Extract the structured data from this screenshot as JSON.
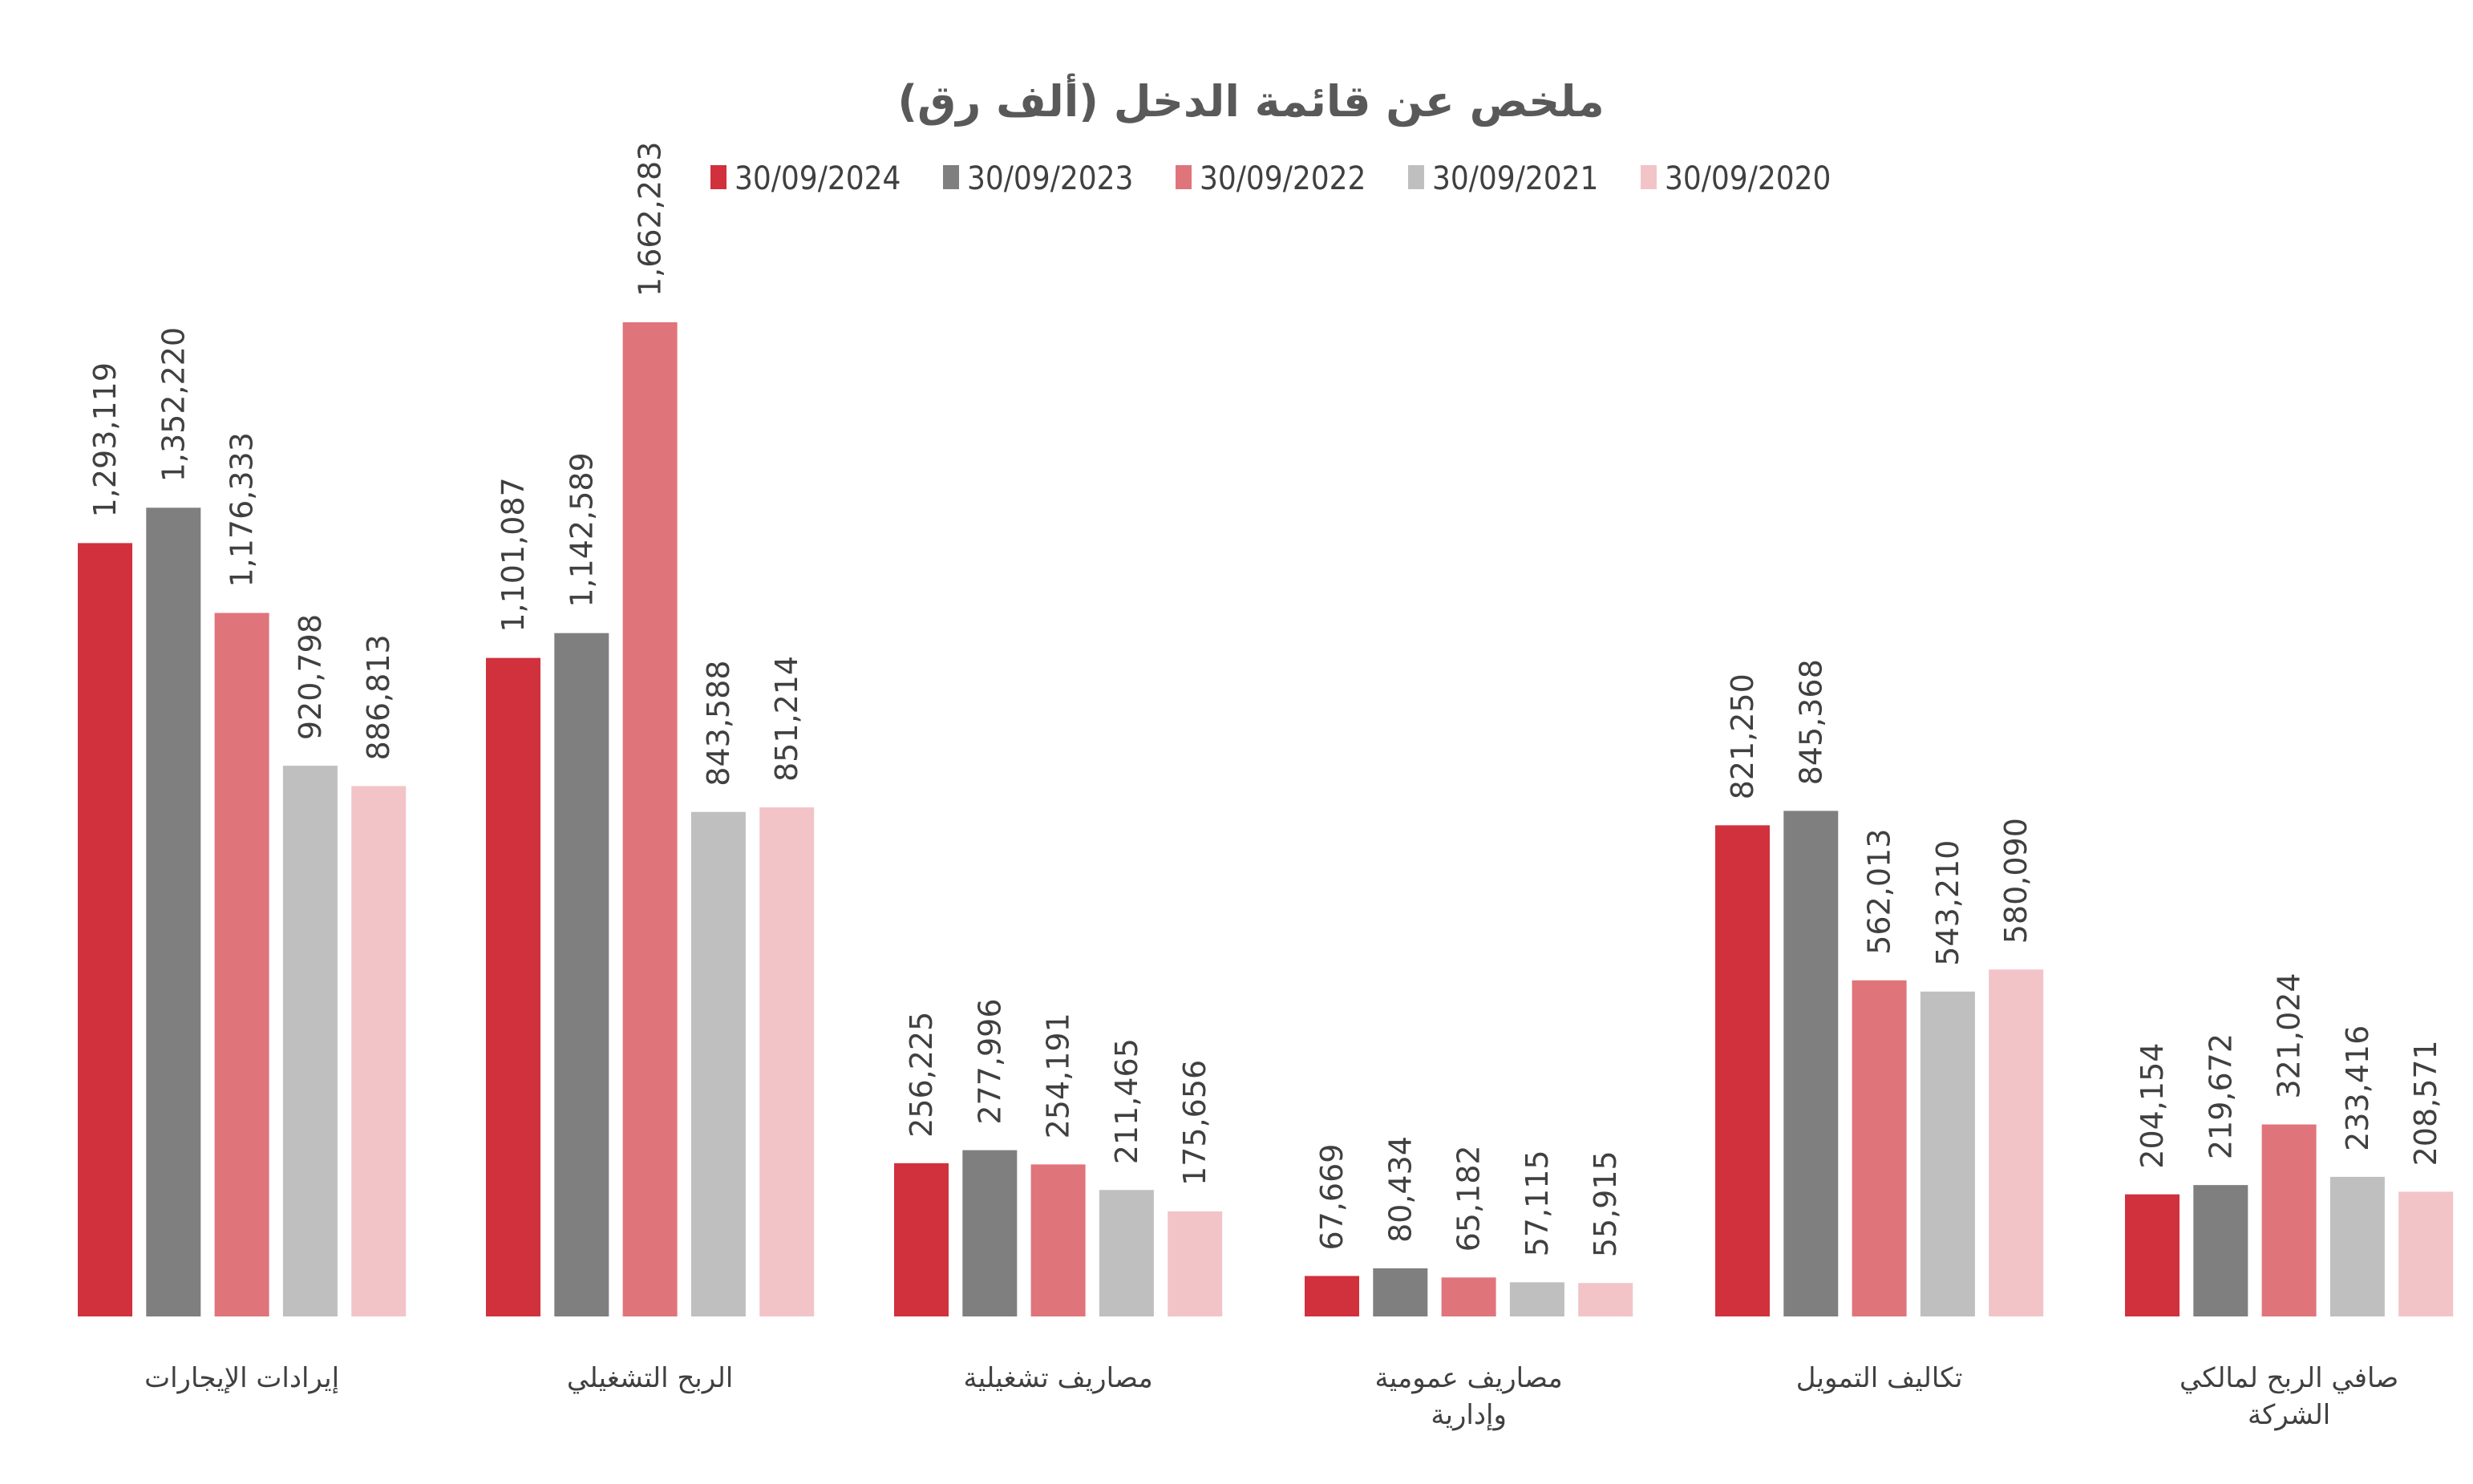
{
  "chart_data": {
    "type": "bar",
    "title": "ملخص عن قائمة الدخل (ألف رق)",
    "legend_position": "top",
    "grid": false,
    "ylim": [
      0,
      1800000
    ],
    "categories": [
      [
        "إيرادات الإيجارات"
      ],
      [
        "الربح التشغيلي"
      ],
      [
        "مصاريف تشغيلية"
      ],
      [
        "مصاريف عمومية",
        "وإدارية"
      ],
      [
        "تكاليف التمويل"
      ],
      [
        "صافي الربح لمالكي",
        "الشركة"
      ]
    ],
    "series": [
      {
        "name": "30/09/2024",
        "color": "#D1313D",
        "values": [
          1293119,
          1101087,
          256225,
          67669,
          821250,
          204154
        ],
        "labels": [
          "1,293,119",
          "1,101,087",
          "256,225",
          "67,669",
          "821,250",
          "204,154"
        ]
      },
      {
        "name": "30/09/2023",
        "color": "#7F7F7F",
        "values": [
          1352220,
          1142589,
          277996,
          80434,
          845368,
          219672
        ],
        "labels": [
          "1,352,220",
          "1,142,589",
          "277,996",
          "80,434",
          "845,368",
          "219,672"
        ]
      },
      {
        "name": "30/09/2022",
        "color": "#E0747B",
        "values": [
          1176333,
          1662283,
          254191,
          65182,
          562013,
          321024
        ],
        "labels": [
          "1,176,333",
          "1,662,283",
          "254,191",
          "65,182",
          "562,013",
          "321,024"
        ]
      },
      {
        "name": "30/09/2021",
        "color": "#BFBFBF",
        "values": [
          920798,
          843588,
          211465,
          57115,
          543210,
          233416
        ],
        "labels": [
          "920,798",
          "843,588",
          "211,465",
          "57,115",
          "543,210",
          "233,416"
        ]
      },
      {
        "name": "30/09/2020",
        "color": "#F2C4C7",
        "values": [
          886813,
          851214,
          175656,
          55915,
          580090,
          208571
        ],
        "labels": [
          "886,813",
          "851,214",
          "175,656",
          "55,915",
          "580,090",
          "208,571"
        ]
      }
    ]
  }
}
